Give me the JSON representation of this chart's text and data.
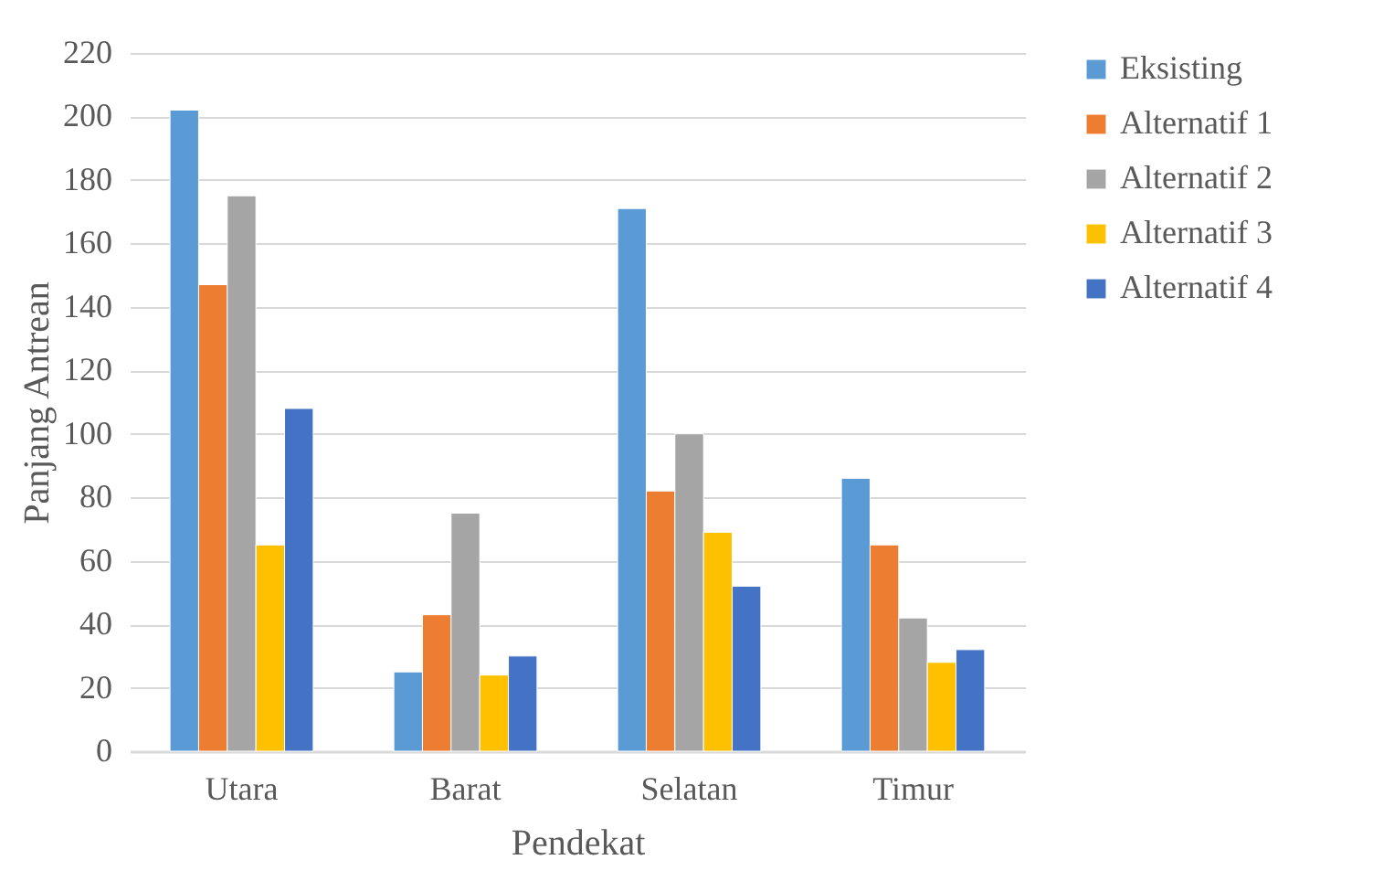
{
  "chart_data": {
    "type": "bar",
    "xlabel": "Pendekat",
    "ylabel": "Panjang Antrean",
    "categories": [
      "Utara",
      "Barat",
      "Selatan",
      "Timur"
    ],
    "series": [
      {
        "name": "Eksisting",
        "color": "#5b9bd5",
        "values": [
          202,
          25,
          171,
          86
        ]
      },
      {
        "name": "Alternatif 1",
        "color": "#ed7d31",
        "values": [
          147,
          43,
          82,
          65
        ]
      },
      {
        "name": "Alternatif 2",
        "color": "#a5a5a5",
        "values": [
          175,
          75,
          100,
          42
        ]
      },
      {
        "name": "Alternatif 3",
        "color": "#ffc000",
        "values": [
          65,
          24,
          69,
          28
        ]
      },
      {
        "name": "Alternatif 4",
        "color": "#4472c4",
        "values": [
          108,
          30,
          52,
          32
        ]
      }
    ],
    "ylim": [
      0,
      220
    ],
    "yticks": [
      0,
      20,
      40,
      60,
      80,
      100,
      120,
      140,
      160,
      180,
      200,
      220
    ],
    "grid": "y",
    "legend": "right"
  }
}
